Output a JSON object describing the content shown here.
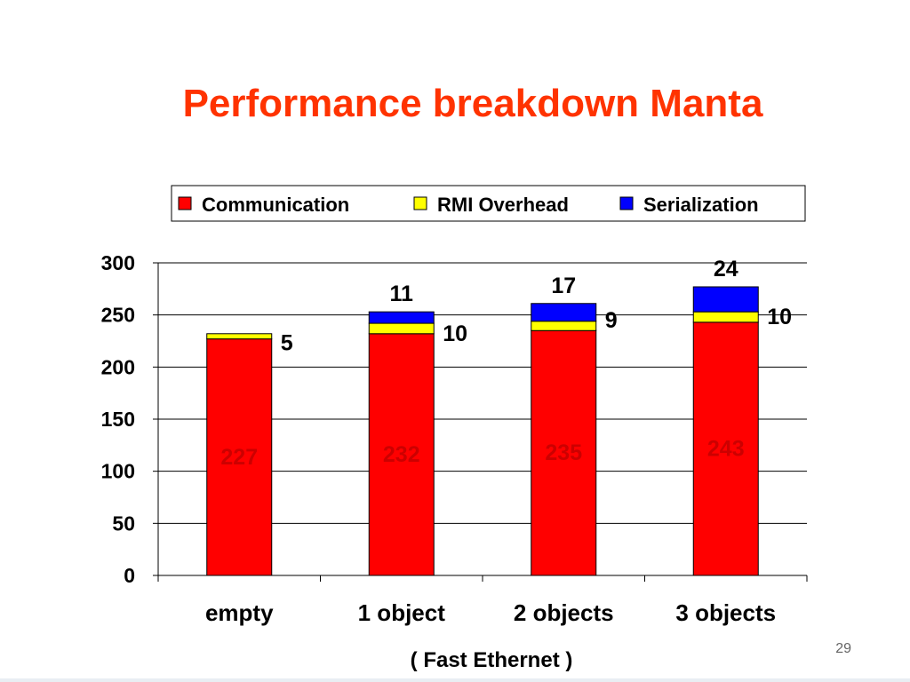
{
  "slide": {
    "title": "Performance breakdown Manta",
    "note": "( Fast Ethernet )",
    "page_number": "29"
  },
  "chart_data": {
    "type": "bar",
    "stacked": true,
    "categories": [
      "empty",
      "1 object",
      "2 objects",
      "3 objects"
    ],
    "series": [
      {
        "name": "Communication",
        "color": "#ff0000",
        "values": [
          227,
          232,
          235,
          243
        ]
      },
      {
        "name": "RMI Overhead",
        "color": "#ffff00",
        "values": [
          5,
          10,
          9,
          10
        ]
      },
      {
        "name": "Serialization",
        "color": "#0000ff",
        "values": [
          0,
          11,
          17,
          24
        ]
      }
    ],
    "ylim": [
      0,
      300
    ],
    "yticks": [
      0,
      50,
      100,
      150,
      200,
      250,
      300
    ],
    "grid": true,
    "legend_position": "top"
  }
}
